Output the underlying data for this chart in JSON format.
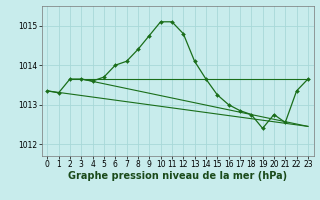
{
  "title": "Graphe pression niveau de la mer (hPa)",
  "background_color": "#c8ecec",
  "grid_color": "#a8d8d8",
  "line_color": "#1a6e1a",
  "marker_color": "#1a6e1a",
  "xlim": [
    -0.5,
    23.5
  ],
  "ylim": [
    1011.7,
    1015.5
  ],
  "yticks": [
    1012,
    1013,
    1014,
    1015
  ],
  "xticks": [
    0,
    1,
    2,
    3,
    4,
    5,
    6,
    7,
    8,
    9,
    10,
    11,
    12,
    13,
    14,
    15,
    16,
    17,
    18,
    19,
    20,
    21,
    22,
    23
  ],
  "main_x": [
    0,
    1,
    2,
    3,
    4,
    5,
    6,
    7,
    8,
    9,
    10,
    11,
    12,
    13,
    14,
    15,
    16,
    17,
    18,
    19,
    20,
    21,
    22,
    23
  ],
  "main_y": [
    1013.35,
    1013.3,
    1013.65,
    1013.65,
    1013.6,
    1013.7,
    1014.0,
    1014.1,
    1014.4,
    1014.75,
    1015.1,
    1015.1,
    1014.8,
    1014.1,
    1013.65,
    1013.25,
    1013.0,
    1012.85,
    1012.75,
    1012.4,
    1012.75,
    1012.55,
    1013.35,
    1013.65
  ],
  "line2_x": [
    2,
    23
  ],
  "line2_y": [
    1013.65,
    1013.65
  ],
  "line3_x": [
    0,
    23
  ],
  "line3_y": [
    1013.35,
    1012.45
  ],
  "line4_x": [
    3,
    23
  ],
  "line4_y": [
    1013.65,
    1012.45
  ],
  "tick_fontsize": 5.5,
  "title_fontsize": 7,
  "figwidth": 3.2,
  "figheight": 2.0,
  "dpi": 100
}
